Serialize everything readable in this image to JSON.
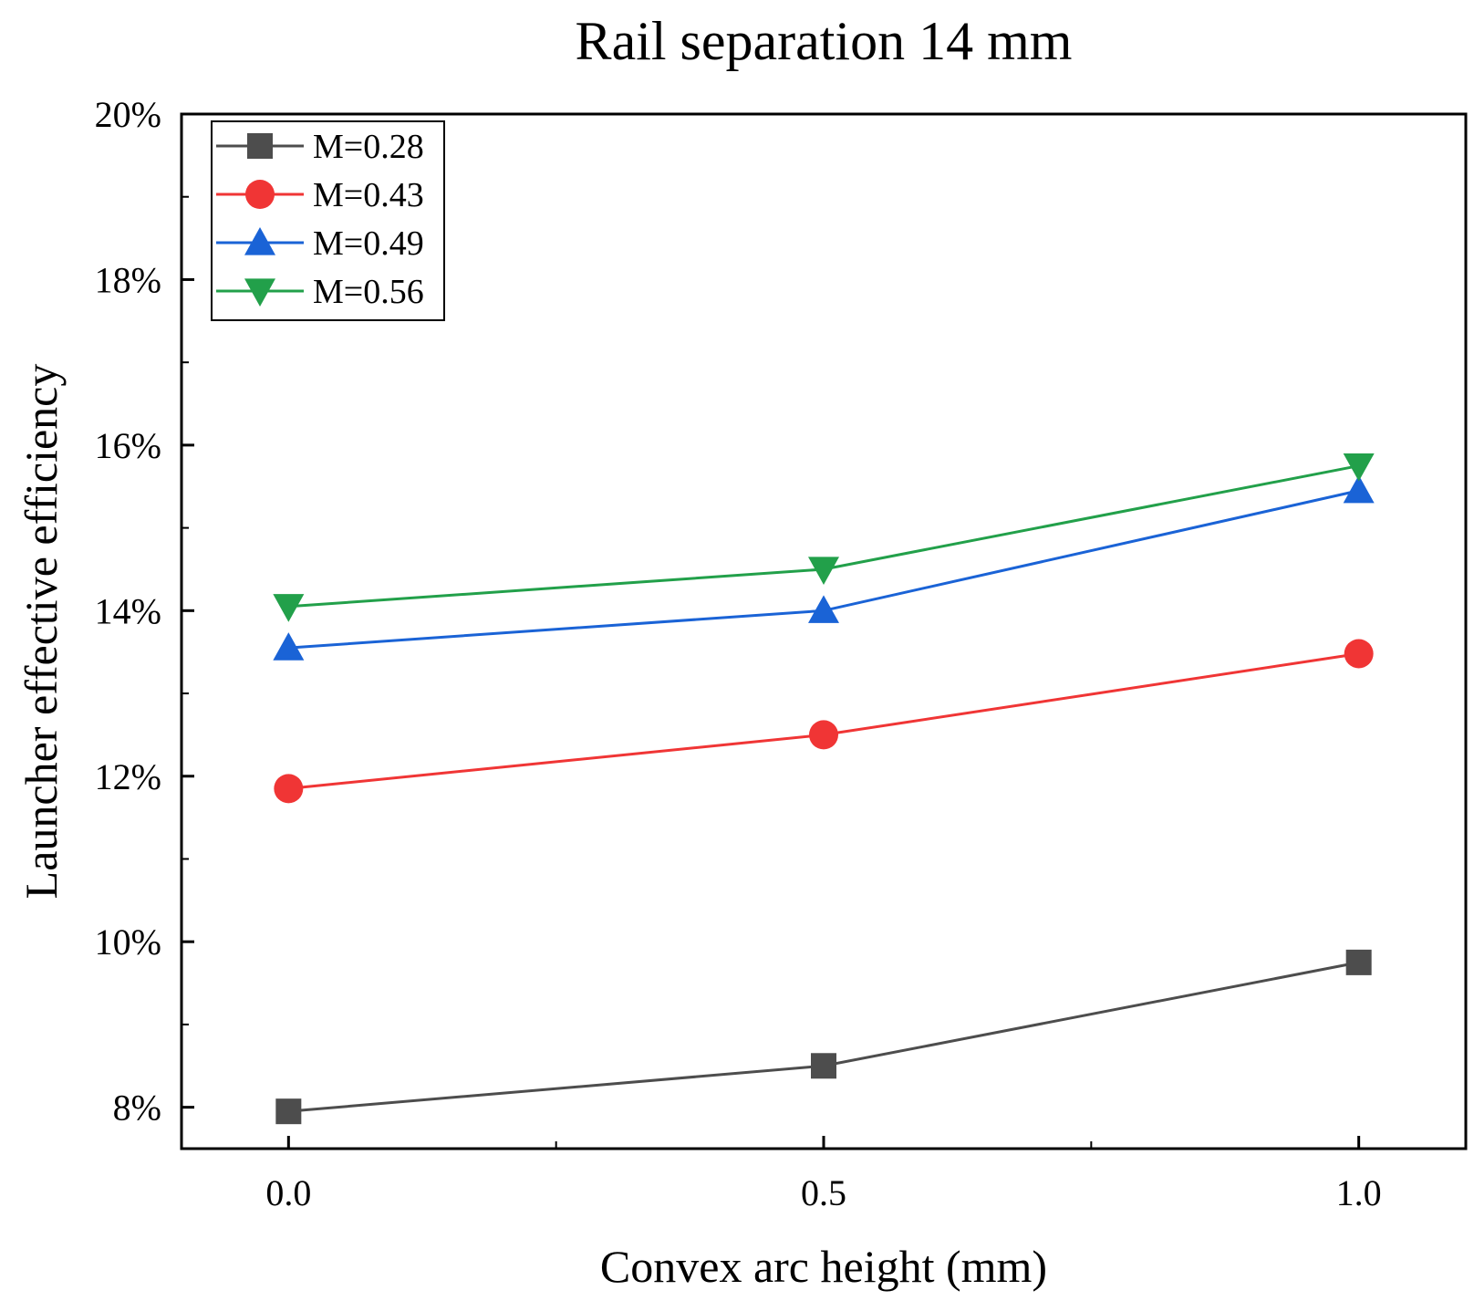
{
  "chart_data": {
    "type": "line",
    "title": "Rail separation 14 mm",
    "xlabel": "Convex arc height (mm)",
    "ylabel": "Launcher effective efficiency",
    "x": [
      0.0,
      0.5,
      1.0
    ],
    "xlim": [
      -0.1,
      1.1
    ],
    "ylim": [
      7.5,
      20
    ],
    "x_ticks": [
      0.0,
      0.5,
      1.0
    ],
    "x_tick_labels": [
      "0.0",
      "0.5",
      "1.0"
    ],
    "y_ticks": [
      8,
      10,
      12,
      14,
      16,
      18,
      20
    ],
    "y_tick_labels": [
      "8%",
      "10%",
      "12%",
      "14%",
      "16%",
      "18%",
      "20%"
    ],
    "grid": false,
    "legend_position": "top-left",
    "series": [
      {
        "name": "M=0.28",
        "values": [
          7.95,
          8.5,
          9.75
        ],
        "color": "#4d4d4d",
        "marker": "square"
      },
      {
        "name": "M=0.43",
        "values": [
          11.85,
          12.5,
          13.48
        ],
        "color": "#f03535",
        "marker": "circle"
      },
      {
        "name": "M=0.49",
        "values": [
          13.55,
          14.0,
          15.45
        ],
        "color": "#1a63d6",
        "marker": "triangle-up"
      },
      {
        "name": "M=0.56",
        "values": [
          14.05,
          14.5,
          15.75
        ],
        "color": "#22a04a",
        "marker": "triangle-down"
      }
    ]
  }
}
